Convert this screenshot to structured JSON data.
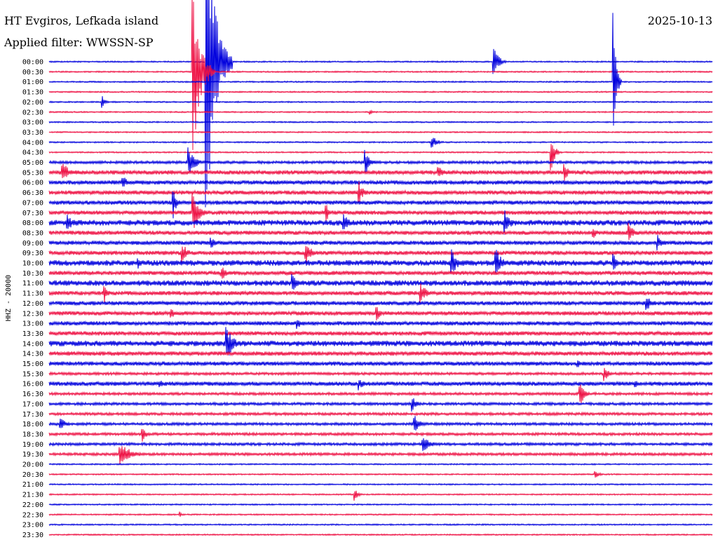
{
  "header": {
    "station": "HT Evgiros, Lefkada island",
    "date": "2025-10-13",
    "filter": "Applied filter: WWSSN-SP"
  },
  "chart_data": {
    "type": "line",
    "ylabel": "HHZ - 20000",
    "row_labels": [
      "00:00",
      "00:30",
      "01:00",
      "01:30",
      "02:00",
      "02:30",
      "03:00",
      "03:30",
      "04:00",
      "04:30",
      "05:00",
      "05:30",
      "06:00",
      "06:30",
      "07:00",
      "07:30",
      "08:00",
      "08:30",
      "09:00",
      "09:30",
      "10:00",
      "10:30",
      "11:00",
      "11:30",
      "12:00",
      "12:30",
      "13:00",
      "13:30",
      "14:00",
      "14:30",
      "15:00",
      "15:30",
      "16:00",
      "16:30",
      "17:00",
      "17:30",
      "18:00",
      "18:30",
      "19:00",
      "19:30",
      "20:00",
      "20:30",
      "21:00",
      "21:30",
      "22:00",
      "22:30",
      "23:00",
      "23:30"
    ],
    "x_range_minutes": [
      0,
      30
    ],
    "colors": {
      "even": "#0000dd",
      "odd": "#ee1144"
    },
    "noise_levels": [
      1,
      1,
      1,
      1,
      1,
      1,
      1,
      1,
      1,
      1,
      2,
      3,
      3,
      3,
      3,
      3,
      4,
      3,
      3,
      3,
      4,
      3,
      4,
      3,
      3,
      3,
      3,
      3,
      4,
      3,
      3,
      2,
      3,
      2,
      2,
      2,
      2,
      2,
      2,
      2,
      1,
      1,
      1,
      1,
      1,
      1,
      1,
      1
    ],
    "events": [
      {
        "row": 0,
        "minute": 7.1,
        "amplitude": 250,
        "duration": 1.2
      },
      {
        "row": 1,
        "minute": 6.5,
        "amplitude": 130,
        "duration": 1.0
      },
      {
        "row": 0,
        "minute": 20.1,
        "amplitude": 30,
        "duration": 0.6
      },
      {
        "row": 2,
        "minute": 25.5,
        "amplitude": 100,
        "duration": 0.4
      },
      {
        "row": 4,
        "minute": 2.4,
        "amplitude": 10,
        "duration": 0.4
      },
      {
        "row": 5,
        "minute": 14.5,
        "amplitude": 5,
        "duration": 0.3
      },
      {
        "row": 8,
        "minute": 17.3,
        "amplitude": 10,
        "duration": 0.8
      },
      {
        "row": 9,
        "minute": 22.7,
        "amplitude": 28,
        "duration": 0.5
      },
      {
        "row": 10,
        "minute": 6.3,
        "amplitude": 22,
        "duration": 0.9
      },
      {
        "row": 10,
        "minute": 14.3,
        "amplitude": 18,
        "duration": 0.7
      },
      {
        "row": 11,
        "minute": 0.6,
        "amplitude": 18,
        "duration": 0.8
      },
      {
        "row": 11,
        "minute": 17.6,
        "amplitude": 10,
        "duration": 0.7
      },
      {
        "row": 11,
        "minute": 23.3,
        "amplitude": 14,
        "duration": 0.6
      },
      {
        "row": 12,
        "minute": 3.3,
        "amplitude": 12,
        "duration": 0.7
      },
      {
        "row": 13,
        "minute": 14.0,
        "amplitude": 18,
        "duration": 0.6
      },
      {
        "row": 14,
        "minute": 5.6,
        "amplitude": 25,
        "duration": 0.5
      },
      {
        "row": 15,
        "minute": 6.5,
        "amplitude": 30,
        "duration": 0.8
      },
      {
        "row": 15,
        "minute": 12.5,
        "amplitude": 20,
        "duration": 0.4
      },
      {
        "row": 16,
        "minute": 0.8,
        "amplitude": 14,
        "duration": 0.8
      },
      {
        "row": 16,
        "minute": 13.3,
        "amplitude": 20,
        "duration": 0.6
      },
      {
        "row": 16,
        "minute": 20.6,
        "amplitude": 22,
        "duration": 0.7
      },
      {
        "row": 17,
        "minute": 24.6,
        "amplitude": 10,
        "duration": 0.6
      },
      {
        "row": 17,
        "minute": 26.2,
        "amplitude": 18,
        "duration": 0.6
      },
      {
        "row": 18,
        "minute": 7.3,
        "amplitude": 12,
        "duration": 0.6
      },
      {
        "row": 19,
        "minute": 6.0,
        "amplitude": 18,
        "duration": 0.7
      },
      {
        "row": 19,
        "minute": 11.6,
        "amplitude": 18,
        "duration": 0.8
      },
      {
        "row": 18,
        "minute": 27.5,
        "amplitude": 14,
        "duration": 0.6
      },
      {
        "row": 20,
        "minute": 4.0,
        "amplitude": 10,
        "duration": 0.5
      },
      {
        "row": 20,
        "minute": 18.2,
        "amplitude": 22,
        "duration": 0.8
      },
      {
        "row": 20,
        "minute": 20.2,
        "amplitude": 22,
        "duration": 0.8
      },
      {
        "row": 20,
        "minute": 25.5,
        "amplitude": 16,
        "duration": 0.6
      },
      {
        "row": 21,
        "minute": 7.8,
        "amplitude": 12,
        "duration": 0.6
      },
      {
        "row": 22,
        "minute": 11.0,
        "amplitude": 14,
        "duration": 0.7
      },
      {
        "row": 23,
        "minute": 2.5,
        "amplitude": 14,
        "duration": 0.6
      },
      {
        "row": 23,
        "minute": 16.8,
        "amplitude": 18,
        "duration": 0.7
      },
      {
        "row": 24,
        "minute": 27.0,
        "amplitude": 16,
        "duration": 0.6
      },
      {
        "row": 25,
        "minute": 5.5,
        "amplitude": 10,
        "duration": 0.5
      },
      {
        "row": 25,
        "minute": 14.8,
        "amplitude": 12,
        "duration": 0.6
      },
      {
        "row": 26,
        "minute": 11.2,
        "amplitude": 10,
        "duration": 0.6
      },
      {
        "row": 28,
        "minute": 8.0,
        "amplitude": 30,
        "duration": 0.9
      },
      {
        "row": 30,
        "minute": 23.9,
        "amplitude": 8,
        "duration": 0.4
      },
      {
        "row": 31,
        "minute": 25.1,
        "amplitude": 12,
        "duration": 0.6
      },
      {
        "row": 32,
        "minute": 5.0,
        "amplitude": 8,
        "duration": 0.6
      },
      {
        "row": 32,
        "minute": 14.0,
        "amplitude": 10,
        "duration": 0.7
      },
      {
        "row": 32,
        "minute": 26.5,
        "amplitude": 8,
        "duration": 0.5
      },
      {
        "row": 33,
        "minute": 24.0,
        "amplitude": 20,
        "duration": 0.6
      },
      {
        "row": 34,
        "minute": 16.4,
        "amplitude": 14,
        "duration": 0.6
      },
      {
        "row": 36,
        "minute": 0.5,
        "amplitude": 12,
        "duration": 0.7
      },
      {
        "row": 36,
        "minute": 16.5,
        "amplitude": 14,
        "duration": 0.8
      },
      {
        "row": 37,
        "minute": 4.2,
        "amplitude": 14,
        "duration": 0.5
      },
      {
        "row": 38,
        "minute": 16.9,
        "amplitude": 12,
        "duration": 1.0
      },
      {
        "row": 39,
        "minute": 3.2,
        "amplitude": 20,
        "duration": 1.4
      },
      {
        "row": 41,
        "minute": 24.7,
        "amplitude": 8,
        "duration": 0.5
      },
      {
        "row": 43,
        "minute": 13.8,
        "amplitude": 10,
        "duration": 0.5
      },
      {
        "row": 45,
        "minute": 5.9,
        "amplitude": 5,
        "duration": 0.4
      }
    ]
  }
}
